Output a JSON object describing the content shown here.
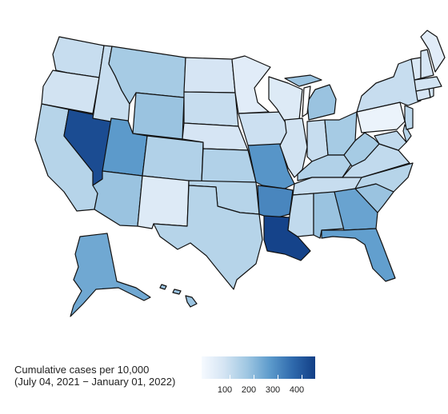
{
  "legend": {
    "title_line1": "Cumulative cases per 10,000",
    "title_line2": "(July 04, 2021 − January 01, 2022)",
    "ticks": [
      "100",
      "200",
      "300",
      "400"
    ],
    "color_low": "#f6faff",
    "color_high": "#123f86"
  },
  "chart_data": {
    "type": "choropleth",
    "metric": "Cumulative cases per 10,000",
    "period": "(July 04, 2021 − January 01, 2022)",
    "scale": {
      "min": 0,
      "max": 480,
      "ticks": [
        100,
        200,
        300,
        400
      ]
    },
    "values": {
      "WA": 120,
      "OR": 100,
      "CA": 150,
      "NV": 450,
      "ID": 120,
      "MT": 180,
      "WY": 200,
      "UT": 290,
      "CO": 160,
      "AZ": 200,
      "NM": 70,
      "ND": 90,
      "SD": 120,
      "NE": 90,
      "KS": 160,
      "OK": 150,
      "TX": 150,
      "MN": 60,
      "IA": 110,
      "MO": 300,
      "AR": 330,
      "LA": 470,
      "WI": 70,
      "IL": 100,
      "MI": 200,
      "IN": 120,
      "OH": 180,
      "KY": 160,
      "TN": 120,
      "MS": 130,
      "AL": 200,
      "GA": 270,
      "FL": 280,
      "SC": 200,
      "NC": 150,
      "VA": 130,
      "WV": 180,
      "PA": 30,
      "NY": 120,
      "VT": 80,
      "NH": 90,
      "ME": 60,
      "MA": 100,
      "RI": 100,
      "CT": 90,
      "NJ": 140,
      "DE": 150,
      "MD": 130,
      "AK": 260,
      "HI": 200
    }
  }
}
